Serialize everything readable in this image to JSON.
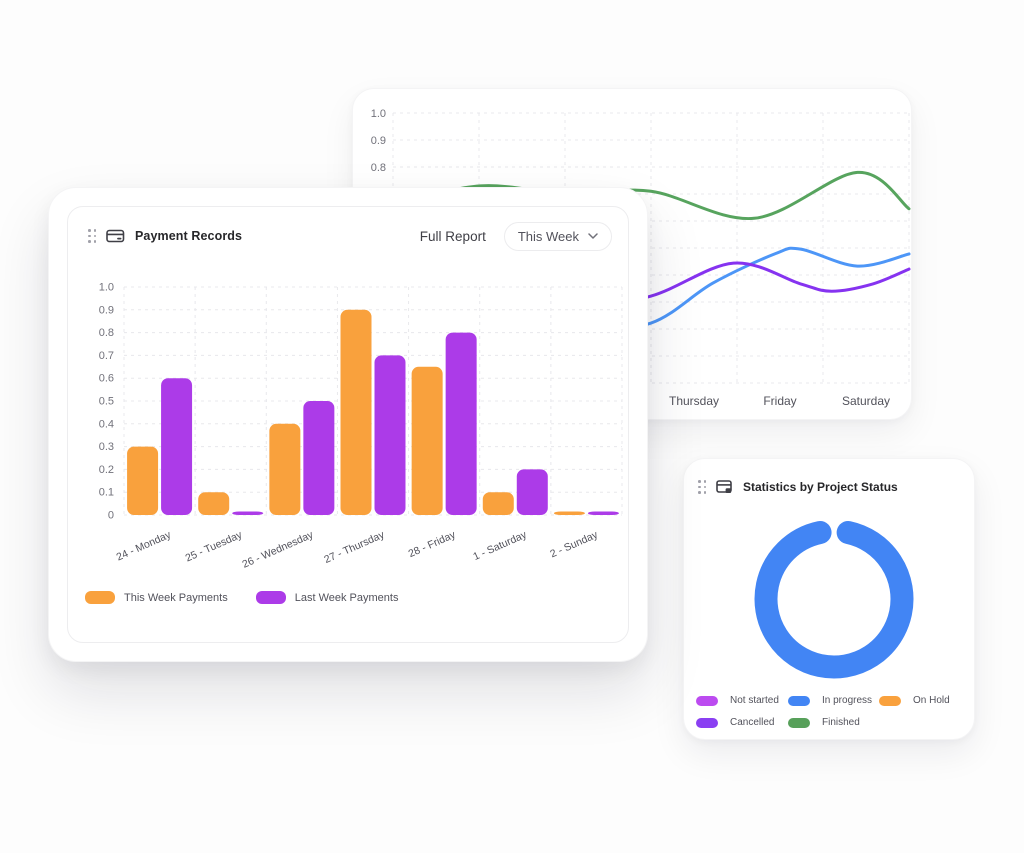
{
  "payment_card": {
    "title": "Payment Records",
    "full_report_label": "Full Report",
    "period_selector": {
      "value": "This Week"
    }
  },
  "activity_card": {
    "visible_x_labels": [
      "Thursday",
      "Friday",
      "Saturday"
    ],
    "visible_y_tick_labels": [
      "1.0",
      "0.9",
      "0.8"
    ]
  },
  "status_card": {
    "title": "Statistics by Project Status"
  },
  "chart_data": [
    {
      "id": "payments",
      "type": "bar",
      "categories": [
        "24 - Monday",
        "25 - Tuesday",
        "26 - Wednesday",
        "27 - Thursday",
        "28 - Friday",
        "1 - Saturday",
        "2 - Sunday"
      ],
      "series": [
        {
          "name": "This Week Payments",
          "color": "#F9A13D",
          "values": [
            0.3,
            0.1,
            0.4,
            0.9,
            0.65,
            0.1,
            0.015
          ]
        },
        {
          "name": "Last Week Payments",
          "color": "#AC3BE8",
          "values": [
            0.6,
            0.015,
            0.5,
            0.7,
            0.8,
            0.2,
            0.015
          ]
        }
      ],
      "ylim": [
        0,
        1
      ],
      "ytick_labels": [
        "0",
        "0.1",
        "0.2",
        "0.3",
        "0.4",
        "0.5",
        "0.6",
        "0.7",
        "0.8",
        "0.9",
        "1.0"
      ],
      "grid": "dashed",
      "legend_position": "bottom"
    },
    {
      "id": "weekly-activity",
      "type": "line",
      "categories": [
        "",
        "",
        "",
        "Thursday",
        "Friday",
        "Saturday"
      ],
      "ylim": [
        0,
        1
      ],
      "yticks": [
        {
          "label": "1.0",
          "v": 1.0
        },
        {
          "label": "0.9",
          "v": 0.9
        },
        {
          "label": "0.8",
          "v": 0.8
        }
      ],
      "grid": "dashed",
      "series": [
        {
          "name": "green-line",
          "color": "#57A45E",
          "points": [
            {
              "t": 0,
              "v": 0.66
            },
            {
              "t": 0.17,
              "v": 0.73
            },
            {
              "t": 0.34,
              "v": 0.7
            },
            {
              "t": 0.5,
              "v": 0.71
            },
            {
              "t": 0.7,
              "v": 0.61
            },
            {
              "t": 0.9,
              "v": 0.78
            },
            {
              "t": 1,
              "v": 0.645
            }
          ]
        },
        {
          "name": "blue-line",
          "color": "#4D96F7",
          "points": [
            {
              "t": 0,
              "v": 0.3
            },
            {
              "t": 0.21,
              "v": 0.22
            },
            {
              "t": 0.36,
              "v": 0.2
            },
            {
              "t": 0.5,
              "v": 0.222
            },
            {
              "t": 0.62,
              "v": 0.37
            },
            {
              "t": 0.74,
              "v": 0.478
            },
            {
              "t": 0.79,
              "v": 0.496
            },
            {
              "t": 0.9,
              "v": 0.433
            },
            {
              "t": 1,
              "v": 0.478
            }
          ]
        },
        {
          "name": "purple-line",
          "color": "#8633F0",
          "points": [
            {
              "t": 0,
              "v": 0.32
            },
            {
              "t": 0.17,
              "v": 0.3
            },
            {
              "t": 0.33,
              "v": 0.26
            },
            {
              "t": 0.5,
              "v": 0.322
            },
            {
              "t": 0.66,
              "v": 0.444
            },
            {
              "t": 0.79,
              "v": 0.367
            },
            {
              "t": 0.85,
              "v": 0.34
            },
            {
              "t": 0.93,
              "v": 0.367
            },
            {
              "t": 1,
              "v": 0.422
            }
          ]
        }
      ]
    },
    {
      "id": "project-status",
      "type": "donut",
      "slices": [
        {
          "label": "In progress",
          "value": 1,
          "color": "#4285F4"
        }
      ],
      "ring": {
        "thickness": 23,
        "gap_degrees": 24
      },
      "legend": [
        {
          "label": "Not started",
          "color": "#BC4BF0"
        },
        {
          "label": "In progress",
          "color": "#4285F4"
        },
        {
          "label": "On Hold",
          "color": "#F9A13D"
        },
        {
          "label": "Cancelled",
          "color": "#8A3FF2"
        },
        {
          "label": "Finished",
          "color": "#57A05A"
        }
      ]
    }
  ]
}
